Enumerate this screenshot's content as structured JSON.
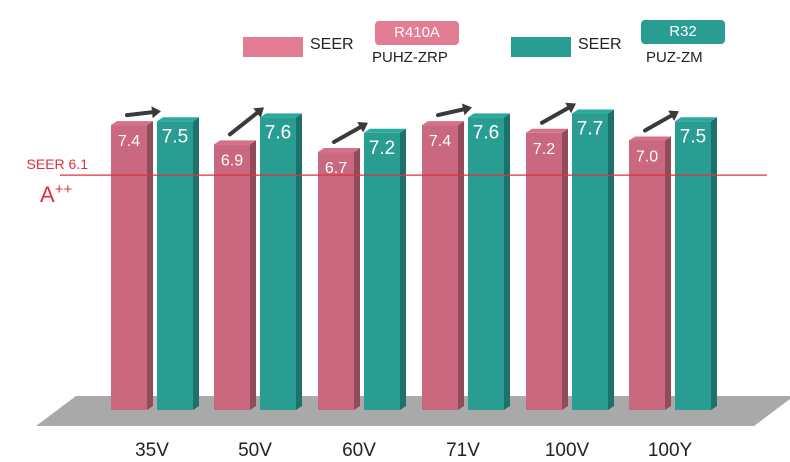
{
  "chart_data": {
    "type": "bar",
    "categories": [
      "35V",
      "50V",
      "60V",
      "71V",
      "100V",
      "100Y"
    ],
    "series": [
      {
        "refrigerant": "R410A",
        "model": "PUHZ-ZRP",
        "metric": "SEER",
        "values": [
          7.4,
          6.9,
          6.7,
          7.4,
          7.2,
          7.0
        ]
      },
      {
        "refrigerant": "R32",
        "model": "PUZ-ZM",
        "metric": "SEER",
        "values": [
          7.5,
          7.6,
          7.2,
          7.6,
          7.7,
          7.5
        ]
      }
    ],
    "value_labels": {
      "r410a": [
        "7.4",
        "6.9",
        "6.7",
        "7.4",
        "7.2",
        "7.0"
      ],
      "r32": [
        "7.5",
        "7.6",
        "7.2",
        "7.6",
        "7.7",
        "7.5"
      ]
    },
    "reference_line": {
      "value": 6.1,
      "label": "SEER 6.1",
      "grade": "A",
      "grade_sup": "++"
    },
    "ylim": [
      0,
      8
    ],
    "legend_placement": "top",
    "colors": {
      "r410a": "#c9687f",
      "r32": "#2a9d93",
      "reference": "#e0323c",
      "floor": "#a9a9a9",
      "arrow": "#3a3a3a"
    }
  },
  "legend": {
    "item1": {
      "label": "SEER",
      "badge": "R410A",
      "model": "PUHZ-ZRP"
    },
    "item2": {
      "label": "SEER",
      "badge": "R32",
      "model": "PUZ-ZM"
    }
  }
}
